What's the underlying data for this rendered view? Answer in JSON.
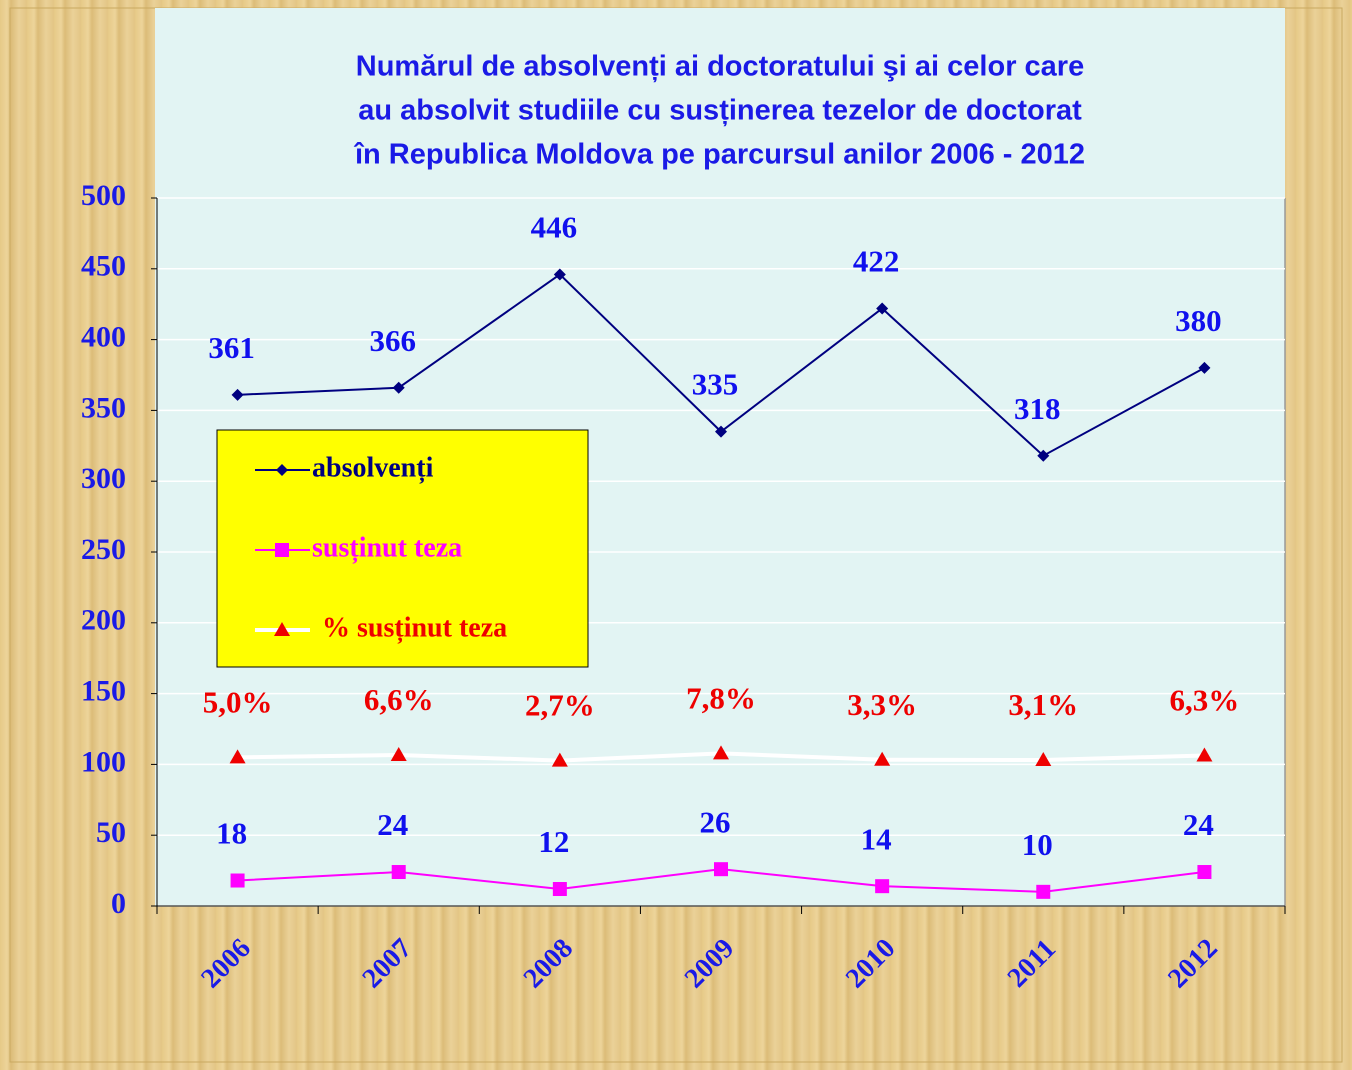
{
  "chart_data": {
    "type": "line",
    "title": [
      "Numărul de absolvenți ai doctoratului şi ai celor care",
      "au absolvit studiile cu susținerea tezelor de doctorat",
      "în Republica Moldova pe parcursul anilor 2006 - 2012"
    ],
    "categories": [
      "2006",
      "2007",
      "2008",
      "2009",
      "2010",
      "2011",
      "2012"
    ],
    "series": [
      {
        "name": "absolvenți",
        "color": "#000080",
        "label_color": "#1010ee",
        "marker": "diamond",
        "values": [
          361,
          366,
          446,
          335,
          422,
          318,
          380
        ]
      },
      {
        "name": "susținut teza",
        "color": "#ff00ff",
        "label_color": "#1010ee",
        "marker": "square",
        "values": [
          18,
          24,
          12,
          26,
          14,
          10,
          24
        ]
      },
      {
        "name": "% susținut teza",
        "color": "#ffffff",
        "label_color": "#ee0000",
        "marker_color": "#ee0000",
        "marker": "triangle",
        "axis": "y2",
        "values": [
          5.0,
          6.6,
          2.7,
          7.8,
          3.3,
          3.1,
          6.3
        ],
        "value_labels": [
          "5,0%",
          "6,6%",
          "2,7%",
          "7,8%",
          "3,3%",
          "3,1%",
          "6,3%"
        ]
      }
    ],
    "ylim": [
      0,
      500
    ],
    "yticks": [
      0,
      50,
      100,
      150,
      200,
      250,
      300,
      350,
      400,
      450,
      500
    ],
    "y2lim": [
      -100,
      400
    ],
    "grid": true
  }
}
